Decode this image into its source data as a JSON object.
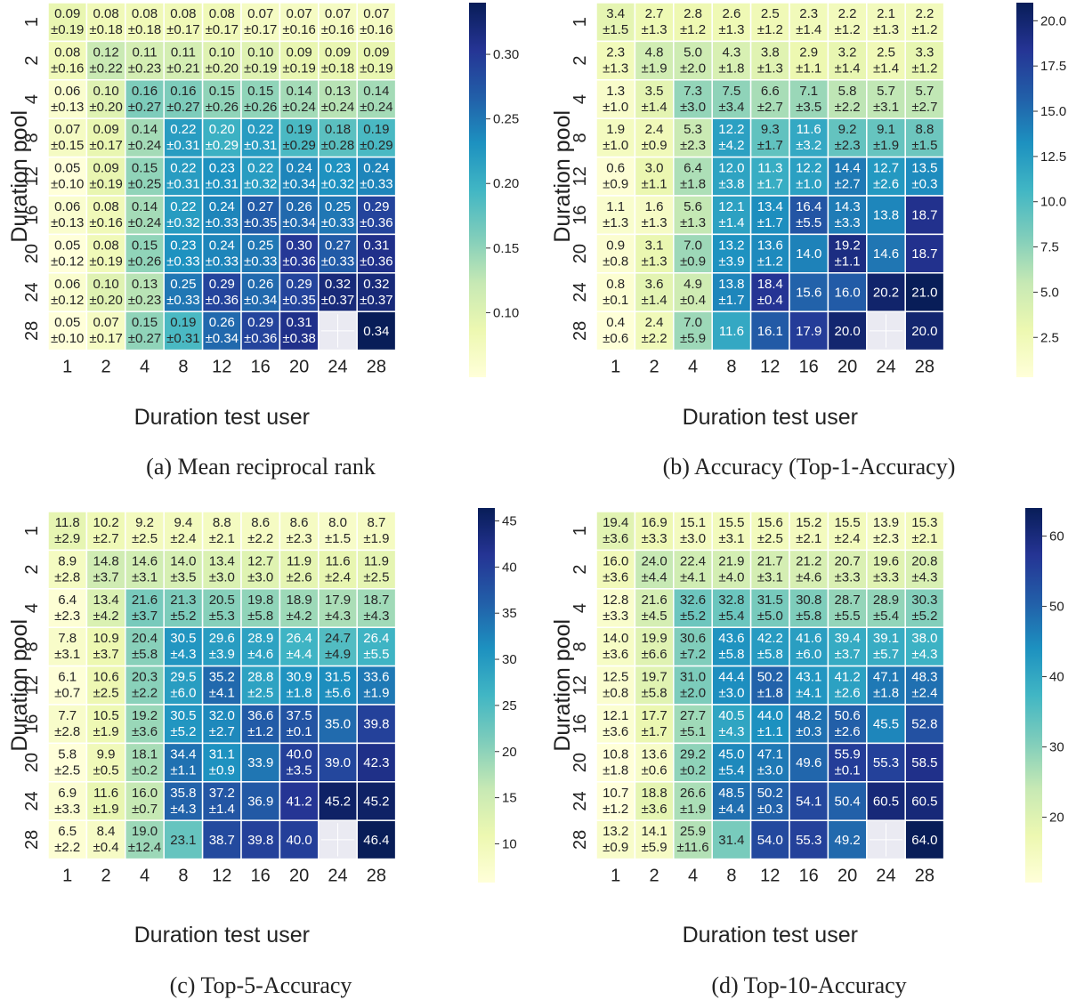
{
  "chart_data": [
    {
      "type": "heatmap",
      "caption": "(a) Mean reciprocal rank",
      "xlabel": "Duration test user",
      "ylabel": "Duration pool",
      "x_categories": [
        "1",
        "2",
        "4",
        "8",
        "12",
        "16",
        "20",
        "24",
        "28"
      ],
      "y_categories": [
        "1",
        "2",
        "4",
        "8",
        "12",
        "16",
        "20",
        "24",
        "28"
      ],
      "colorbar": {
        "range": [
          0.05,
          0.34
        ],
        "ticks": [
          "0.10",
          "0.15",
          "0.20",
          "0.25",
          "0.30"
        ]
      },
      "values": [
        [
          0.09,
          0.08,
          0.08,
          0.08,
          0.08,
          0.07,
          0.07,
          0.07,
          0.07
        ],
        [
          0.08,
          0.12,
          0.11,
          0.11,
          0.1,
          0.1,
          0.09,
          0.09,
          0.09
        ],
        [
          0.06,
          0.1,
          0.16,
          0.16,
          0.15,
          0.15,
          0.14,
          0.13,
          0.14
        ],
        [
          0.07,
          0.09,
          0.14,
          0.22,
          0.2,
          0.22,
          0.19,
          0.18,
          0.19
        ],
        [
          0.05,
          0.09,
          0.15,
          0.22,
          0.23,
          0.22,
          0.24,
          0.23,
          0.24
        ],
        [
          0.06,
          0.08,
          0.14,
          0.22,
          0.24,
          0.27,
          0.26,
          0.25,
          0.29
        ],
        [
          0.05,
          0.08,
          0.15,
          0.23,
          0.24,
          0.25,
          0.3,
          0.27,
          0.31
        ],
        [
          0.06,
          0.1,
          0.13,
          0.25,
          0.29,
          0.26,
          0.29,
          0.32,
          0.32
        ],
        [
          0.05,
          0.07,
          0.15,
          0.19,
          0.26,
          0.29,
          0.31,
          null,
          0.34
        ]
      ],
      "std": [
        [
          "±0.19",
          "±0.18",
          "±0.18",
          "±0.17",
          "±0.17",
          "±0.17",
          "±0.16",
          "±0.16",
          "±0.16"
        ],
        [
          "±0.16",
          "±0.22",
          "±0.23",
          "±0.21",
          "±0.20",
          "±0.19",
          "±0.19",
          "±0.18",
          "±0.19"
        ],
        [
          "±0.13",
          "±0.20",
          "±0.27",
          "±0.27",
          "±0.26",
          "±0.26",
          "±0.24",
          "±0.24",
          "±0.24"
        ],
        [
          "±0.15",
          "±0.17",
          "±0.24",
          "±0.31",
          "±0.29",
          "±0.31",
          "±0.29",
          "±0.28",
          "±0.29"
        ],
        [
          "±0.10",
          "±0.19",
          "±0.25",
          "±0.31",
          "±0.31",
          "±0.32",
          "±0.34",
          "±0.32",
          "±0.33"
        ],
        [
          "±0.13",
          "±0.16",
          "±0.24",
          "±0.32",
          "±0.33",
          "±0.35",
          "±0.34",
          "±0.33",
          "±0.36"
        ],
        [
          "±0.12",
          "±0.19",
          "±0.26",
          "±0.33",
          "±0.33",
          "±0.33",
          "±0.36",
          "±0.33",
          "±0.36"
        ],
        [
          "±0.12",
          "±0.20",
          "±0.23",
          "±0.33",
          "±0.36",
          "±0.34",
          "±0.35",
          "±0.37",
          "±0.37"
        ],
        [
          "±0.10",
          "±0.17",
          "±0.27",
          "±0.31",
          "±0.34",
          "±0.36",
          "±0.38",
          "",
          ""
        ]
      ]
    },
    {
      "type": "heatmap",
      "caption": "(b) Accuracy (Top-1-Accuracy)",
      "xlabel": "Duration test user",
      "ylabel": "Duration pool",
      "x_categories": [
        "1",
        "2",
        "4",
        "8",
        "12",
        "16",
        "20",
        "24",
        "28"
      ],
      "y_categories": [
        "1",
        "2",
        "4",
        "8",
        "12",
        "16",
        "20",
        "24",
        "28"
      ],
      "colorbar": {
        "range": [
          0.3,
          21.0
        ],
        "ticks": [
          "2.5",
          "5.0",
          "7.5",
          "10.0",
          "12.5",
          "15.0",
          "17.5",
          "20.0"
        ]
      },
      "values": [
        [
          3.4,
          2.7,
          2.8,
          2.6,
          2.5,
          2.3,
          2.2,
          2.1,
          2.2
        ],
        [
          2.3,
          4.8,
          5.0,
          4.3,
          3.8,
          2.9,
          3.2,
          2.5,
          3.3
        ],
        [
          1.3,
          3.5,
          7.3,
          7.5,
          6.6,
          7.1,
          5.8,
          5.7,
          5.7
        ],
        [
          1.9,
          2.4,
          5.3,
          12.2,
          9.3,
          11.6,
          9.2,
          9.1,
          8.8
        ],
        [
          0.6,
          3.0,
          6.4,
          12.0,
          11.3,
          12.2,
          14.4,
          12.7,
          13.5
        ],
        [
          1.1,
          1.6,
          5.6,
          12.1,
          13.4,
          16.4,
          14.3,
          13.8,
          18.7
        ],
        [
          0.9,
          3.1,
          7.0,
          13.2,
          13.6,
          14.0,
          19.2,
          14.6,
          18.7
        ],
        [
          0.8,
          3.6,
          4.9,
          13.8,
          18.4,
          15.6,
          16.0,
          20.2,
          21.0
        ],
        [
          0.4,
          2.4,
          7.0,
          11.6,
          16.1,
          17.9,
          20.0,
          null,
          20.0
        ]
      ],
      "std": [
        [
          "±1.5",
          "±1.3",
          "±1.2",
          "±1.3",
          "±1.2",
          "±1.4",
          "±1.2",
          "±1.3",
          "±1.2"
        ],
        [
          "±1.3",
          "±1.9",
          "±2.0",
          "±1.8",
          "±1.3",
          "±1.1",
          "±1.4",
          "±1.4",
          "±1.2"
        ],
        [
          "±1.0",
          "±1.4",
          "±3.0",
          "±3.4",
          "±2.7",
          "±3.5",
          "±2.2",
          "±3.1",
          "±2.7"
        ],
        [
          "±1.0",
          "±0.9",
          "±2.3",
          "±4.2",
          "±1.7",
          "±3.2",
          "±2.3",
          "±1.9",
          "±1.5"
        ],
        [
          "±0.9",
          "±1.1",
          "±1.8",
          "±3.8",
          "±1.7",
          "±1.0",
          "±2.7",
          "±2.6",
          "±0.3"
        ],
        [
          "±1.3",
          "±1.3",
          "±1.3",
          "±1.4",
          "±1.7",
          "±5.5",
          "±3.3",
          "",
          ""
        ],
        [
          "±0.8",
          "±1.3",
          "±0.9",
          "±3.9",
          "±1.2",
          "",
          "±1.1",
          "",
          ""
        ],
        [
          "±0.1",
          "±1.4",
          "±0.4",
          "±1.7",
          "±0.4",
          "",
          "",
          "",
          ""
        ],
        [
          "±0.6",
          "±2.2",
          "±5.9",
          "",
          "",
          "",
          "",
          "",
          ""
        ]
      ]
    },
    {
      "type": "heatmap",
      "caption": "(c) Top-5-Accuracy",
      "xlabel": "Duration test user",
      "ylabel": "Duration pool",
      "x_categories": [
        "1",
        "2",
        "4",
        "8",
        "12",
        "16",
        "20",
        "24",
        "28"
      ],
      "y_categories": [
        "1",
        "2",
        "4",
        "8",
        "12",
        "16",
        "20",
        "24",
        "28"
      ],
      "colorbar": {
        "range": [
          5.8,
          46.4
        ],
        "ticks": [
          "10",
          "15",
          "20",
          "25",
          "30",
          "35",
          "40",
          "45"
        ]
      },
      "values": [
        [
          11.8,
          10.2,
          9.2,
          9.4,
          8.8,
          8.6,
          8.6,
          8.0,
          8.7
        ],
        [
          8.9,
          14.8,
          14.6,
          14.0,
          13.4,
          12.7,
          11.9,
          11.6,
          11.9
        ],
        [
          6.4,
          13.4,
          21.6,
          21.3,
          20.5,
          19.8,
          18.9,
          17.9,
          18.7
        ],
        [
          7.8,
          10.9,
          20.4,
          30.5,
          29.6,
          28.9,
          26.4,
          24.7,
          26.4
        ],
        [
          6.1,
          10.6,
          20.3,
          29.5,
          35.2,
          28.8,
          30.9,
          31.5,
          33.6
        ],
        [
          7.7,
          10.5,
          19.2,
          30.5,
          32.0,
          36.6,
          37.5,
          35.0,
          39.8
        ],
        [
          5.8,
          9.9,
          18.1,
          34.4,
          31.1,
          33.9,
          40.0,
          39.0,
          42.3
        ],
        [
          6.9,
          11.6,
          16.0,
          35.8,
          37.2,
          36.9,
          41.2,
          45.2,
          45.2
        ],
        [
          6.5,
          8.4,
          19.0,
          23.1,
          38.7,
          39.8,
          40.0,
          null,
          46.4
        ]
      ],
      "std": [
        [
          "±2.9",
          "±2.7",
          "±2.5",
          "±2.4",
          "±2.1",
          "±2.2",
          "±2.3",
          "±1.5",
          "±1.9"
        ],
        [
          "±2.8",
          "±3.7",
          "±3.1",
          "±3.5",
          "±3.0",
          "±3.0",
          "±2.6",
          "±2.4",
          "±2.5"
        ],
        [
          "±2.3",
          "±4.2",
          "±3.7",
          "±5.2",
          "±5.3",
          "±5.8",
          "±4.2",
          "±4.3",
          "±4.3"
        ],
        [
          "±3.1",
          "±3.7",
          "±5.8",
          "±4.3",
          "±3.9",
          "±4.6",
          "±4.4",
          "±4.9",
          "±5.5"
        ],
        [
          "±0.7",
          "±2.5",
          "±2.2",
          "±6.0",
          "±4.1",
          "±2.5",
          "±1.8",
          "±5.6",
          "±1.9"
        ],
        [
          "±2.8",
          "±1.9",
          "±3.6",
          "±5.2",
          "±2.7",
          "±1.2",
          "±0.1",
          "",
          ""
        ],
        [
          "±2.5",
          "±0.5",
          "±0.2",
          "±1.1",
          "±0.9",
          "",
          "±3.5",
          "",
          ""
        ],
        [
          "±3.3",
          "±1.9",
          "±0.7",
          "±4.3",
          "±1.4",
          "",
          "",
          "",
          ""
        ],
        [
          "±2.2",
          "±0.4",
          "±12.4",
          "",
          "",
          "",
          "",
          "",
          ""
        ]
      ]
    },
    {
      "type": "heatmap",
      "caption": "(d) Top-10-Accuracy",
      "xlabel": "Duration test user",
      "ylabel": "Duration pool",
      "x_categories": [
        "1",
        "2",
        "4",
        "8",
        "12",
        "16",
        "20",
        "24",
        "28"
      ],
      "y_categories": [
        "1",
        "2",
        "4",
        "8",
        "12",
        "16",
        "20",
        "24",
        "28"
      ],
      "colorbar": {
        "range": [
          10.7,
          64.0
        ],
        "ticks": [
          "20",
          "30",
          "40",
          "50",
          "60"
        ]
      },
      "values": [
        [
          19.4,
          16.9,
          15.1,
          15.5,
          15.6,
          15.2,
          15.5,
          13.9,
          15.3
        ],
        [
          16.0,
          24.0,
          22.4,
          21.9,
          21.7,
          21.2,
          20.7,
          19.6,
          20.8
        ],
        [
          12.8,
          21.6,
          32.6,
          32.8,
          31.5,
          30.8,
          28.7,
          28.9,
          30.3
        ],
        [
          14.0,
          19.9,
          30.6,
          43.6,
          42.2,
          41.6,
          39.4,
          39.1,
          38.0
        ],
        [
          12.5,
          19.7,
          31.0,
          44.4,
          50.2,
          43.1,
          41.2,
          47.1,
          48.3
        ],
        [
          12.1,
          17.7,
          27.7,
          40.5,
          44.0,
          48.2,
          50.6,
          45.5,
          52.8
        ],
        [
          10.8,
          13.6,
          29.2,
          45.0,
          47.1,
          49.6,
          55.9,
          55.3,
          58.5
        ],
        [
          10.7,
          18.8,
          26.6,
          48.5,
          50.2,
          54.1,
          50.4,
          60.5,
          60.5
        ],
        [
          13.2,
          14.1,
          25.9,
          31.4,
          54.0,
          55.3,
          49.2,
          null,
          64.0
        ]
      ],
      "std": [
        [
          "±3.6",
          "±3.3",
          "±3.0",
          "±3.1",
          "±2.5",
          "±2.1",
          "±2.4",
          "±2.3",
          "±2.1"
        ],
        [
          "±3.6",
          "±4.4",
          "±4.1",
          "±4.0",
          "±3.1",
          "±4.6",
          "±3.3",
          "±3.3",
          "±4.3"
        ],
        [
          "±3.3",
          "±4.5",
          "±5.2",
          "±5.4",
          "±5.0",
          "±5.8",
          "±5.5",
          "±5.4",
          "±5.2"
        ],
        [
          "±3.6",
          "±6.6",
          "±7.2",
          "±5.8",
          "±5.8",
          "±6.0",
          "±3.7",
          "±5.7",
          "±4.3"
        ],
        [
          "±0.8",
          "±5.8",
          "±2.0",
          "±3.0",
          "±1.8",
          "±4.1",
          "±2.6",
          "±1.8",
          "±2.4"
        ],
        [
          "±3.6",
          "±1.7",
          "±5.1",
          "±4.3",
          "±1.1",
          "±0.3",
          "±2.6",
          "",
          ""
        ],
        [
          "±1.8",
          "±0.6",
          "±0.2",
          "±5.4",
          "±3.0",
          "",
          "±0.1",
          "",
          ""
        ],
        [
          "±1.2",
          "±3.6",
          "±1.9",
          "±4.4",
          "±0.3",
          "",
          "",
          "",
          ""
        ],
        [
          "±0.9",
          "±5.9",
          "±11.6",
          "",
          "",
          "",
          "",
          "",
          ""
        ]
      ]
    }
  ]
}
